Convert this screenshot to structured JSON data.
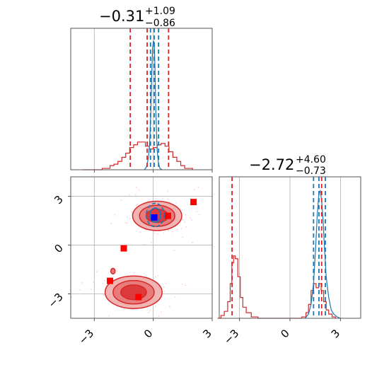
{
  "chart_data": [
    {
      "type": "histogram",
      "panel": "top-left",
      "title": {
        "main": "−0.31",
        "upper": "+1.09",
        "lower": "−0.86"
      },
      "xlim": [
        -4.2,
        3.0
      ],
      "grid": true,
      "series": [
        {
          "name": "",
          "color": "#d62728",
          "step_x": [
            -3.6,
            -2.6,
            -2.2,
            -2.0,
            -1.8,
            -1.6,
            -1.4,
            -1.2,
            -1.0,
            -0.8,
            -0.6,
            -0.4,
            -0.2,
            0.0,
            0.2,
            0.4,
            0.6,
            0.8,
            1.0,
            1.2,
            1.4,
            1.6,
            2.0
          ],
          "step_y": [
            0.0,
            0.01,
            0.03,
            0.04,
            0.06,
            0.09,
            0.12,
            0.16,
            0.18,
            0.2,
            0.2,
            0.17,
            0.15,
            0.16,
            0.18,
            0.19,
            0.17,
            0.13,
            0.09,
            0.06,
            0.03,
            0.01,
            0.0
          ],
          "quantile_lines": [
            -1.17,
            -0.31,
            0.78
          ]
        },
        {
          "name": "",
          "color": "#1f77b4",
          "x": [
            -0.45,
            -0.35,
            -0.25,
            -0.18,
            -0.12,
            -0.08,
            -0.04,
            0.0,
            0.03,
            0.06,
            0.09,
            0.12,
            0.16,
            0.2,
            0.26,
            0.34,
            0.45
          ],
          "y": [
            0.0,
            0.02,
            0.08,
            0.2,
            0.42,
            0.68,
            0.86,
            0.92,
            0.93,
            0.88,
            0.72,
            0.5,
            0.3,
            0.14,
            0.05,
            0.01,
            0.0
          ],
          "quantile_lines": [
            -0.14,
            0.05,
            0.27
          ]
        }
      ]
    },
    {
      "type": "histogram",
      "panel": "bottom-right",
      "title": {
        "main": "−2.72",
        "upper": "+4.60",
        "lower": "−0.73"
      },
      "xlim": [
        -4.2,
        4.2
      ],
      "xticks": [
        "−3",
        "0",
        "3"
      ],
      "grid": true,
      "series": [
        {
          "name": "",
          "color": "#d62728",
          "step_x": [
            -4.3,
            -4.1,
            -3.9,
            -3.7,
            -3.55,
            -3.45,
            -3.35,
            -3.25,
            -3.1,
            -2.95,
            -2.8,
            -2.6,
            -2.3,
            -1.9,
            0.0,
            0.7,
            0.95,
            1.1,
            1.25,
            1.4,
            1.55,
            1.7,
            1.85,
            2.0,
            2.15,
            2.3,
            2.5,
            2.7
          ],
          "step_y": [
            0.0,
            0.02,
            0.05,
            0.12,
            0.25,
            0.4,
            0.45,
            0.43,
            0.3,
            0.15,
            0.08,
            0.04,
            0.01,
            0.0,
            0.0,
            0.01,
            0.04,
            0.1,
            0.2,
            0.25,
            0.22,
            0.25,
            0.2,
            0.12,
            0.06,
            0.03,
            0.01,
            0.0
          ],
          "quantile_lines": [
            -3.44,
            1.88
          ]
        },
        {
          "name": "",
          "color": "#1f77b4",
          "x": [
            0.9,
            1.1,
            1.25,
            1.4,
            1.52,
            1.62,
            1.72,
            1.8,
            1.88,
            1.97,
            2.05,
            2.15,
            2.3,
            2.45,
            2.6,
            2.8,
            3.0
          ],
          "y": [
            0.0,
            0.03,
            0.1,
            0.25,
            0.5,
            0.75,
            0.9,
            0.92,
            0.85,
            0.7,
            0.5,
            0.3,
            0.15,
            0.06,
            0.03,
            0.01,
            0.0
          ],
          "quantile_lines": [
            1.4,
            1.72,
            2.1
          ]
        }
      ]
    },
    {
      "type": "contour-scatter",
      "panel": "bottom-left",
      "xlim": [
        -4.2,
        3.0
      ],
      "ylim": [
        -4.5,
        4.2
      ],
      "xticks": [
        "−3",
        "0",
        "3"
      ],
      "yticks": [
        "−3",
        "0",
        "3"
      ],
      "grid": true,
      "contours": [
        {
          "color": "#d62728",
          "center": [
            0.2,
            1.8
          ],
          "radii": [
            1.25,
            0.9
          ],
          "levels": [
            1.0,
            0.72,
            0.45
          ]
        },
        {
          "color": "#d62728",
          "center": [
            -1.0,
            -2.9
          ],
          "radii": [
            1.45,
            1.0
          ],
          "levels": [
            1.0,
            0.72,
            0.45
          ]
        },
        {
          "color": "#1f77b4",
          "center": [
            0.1,
            1.85
          ],
          "radii": [
            0.45,
            0.72
          ],
          "levels": [
            1.0,
            0.6
          ]
        }
      ],
      "red_points": [
        [
          2.05,
          2.65
        ],
        [
          0.75,
          1.8
        ],
        [
          -1.5,
          -0.2
        ],
        [
          -2.2,
          -2.2
        ],
        [
          -0.75,
          -3.2
        ]
      ],
      "blue_points": [
        [
          0.05,
          1.7
        ]
      ],
      "small_blob": [
        -2.05,
        -1.6
      ]
    }
  ]
}
